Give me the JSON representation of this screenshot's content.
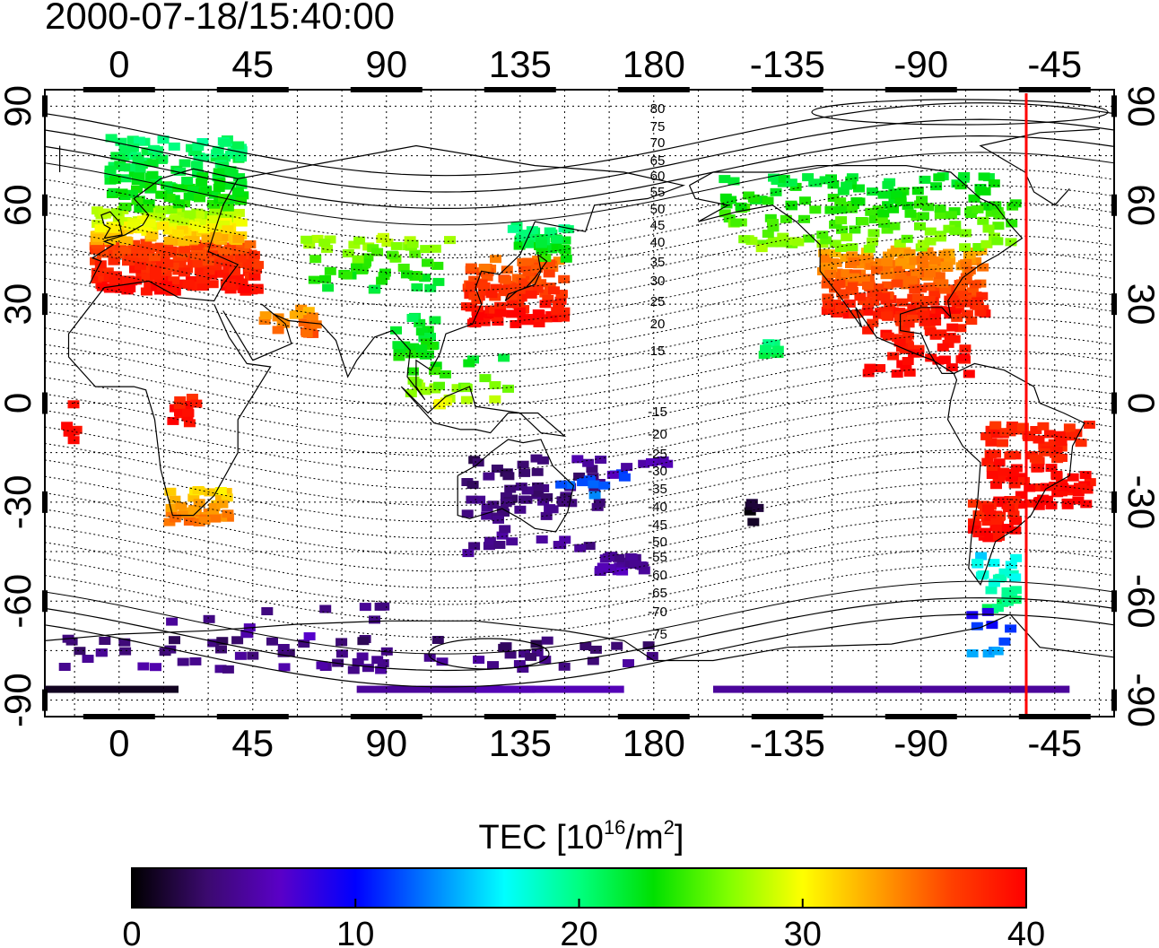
{
  "title": "2000-07-18/15:40:00",
  "map": {
    "lon_ticks_top": [
      "0",
      "45",
      "90",
      "135",
      "180",
      "-135",
      "-90",
      "-45"
    ],
    "lon_ticks_bottom": [
      "0",
      "45",
      "90",
      "135",
      "180",
      "-135",
      "-90",
      "-45"
    ],
    "lat_ticks_left": [
      "90",
      "60",
      "30",
      "0",
      "-30",
      "-60",
      "-90"
    ],
    "lat_ticks_right": [
      "90",
      "60",
      "30",
      "0",
      "-30",
      "-60",
      "-90"
    ],
    "contour_labels_north": [
      "80",
      "75",
      "70",
      "65",
      "60",
      "55",
      "50",
      "45",
      "40",
      "35",
      "30",
      "25",
      "20",
      "15"
    ],
    "contour_labels_south": [
      "-15",
      "-20",
      "-25",
      "-30",
      "-35",
      "-40",
      "-45",
      "-50",
      "-55",
      "-60",
      "-65",
      "-70",
      "-75"
    ],
    "terminator_color": "#ff0000"
  },
  "colorbar": {
    "label_prefix": "TEC  [10",
    "label_exp1": "16",
    "label_mid": "/m",
    "label_exp2": "2",
    "label_suffix": "]",
    "ticks": [
      "0",
      "10",
      "20",
      "30",
      "40"
    ],
    "min": 0,
    "max": 40,
    "colors": [
      "#000000",
      "#3b0a6e",
      "#5a00c8",
      "#0000ff",
      "#0080ff",
      "#00ffff",
      "#00ff80",
      "#00e000",
      "#80ff00",
      "#ffff00",
      "#ffa000",
      "#ff4000",
      "#ff0000"
    ]
  },
  "chart_data": {
    "type": "heatmap",
    "title": "2000-07-18/15:40:00",
    "colorbar_label": "TEC [10^16/m^2]",
    "value_range": [
      0,
      40
    ],
    "regions": [
      {
        "lon": [
          -10,
          40
        ],
        "lat": [
          35,
          50
        ],
        "value": 38
      },
      {
        "lon": [
          -10,
          40
        ],
        "lat": [
          50,
          60
        ],
        "value": 30
      },
      {
        "lon": [
          0,
          40
        ],
        "lat": [
          60,
          80
        ],
        "value": 23
      },
      {
        "lon": [
          120,
          145
        ],
        "lat": [
          25,
          45
        ],
        "value": 37
      },
      {
        "lon": [
          -125,
          -70
        ],
        "lat": [
          30,
          48
        ],
        "value": 36
      },
      {
        "lon": [
          -160,
          -60
        ],
        "lat": [
          50,
          70
        ],
        "value": 24
      },
      {
        "lon": [
          -70,
          -40
        ],
        "lat": [
          -35,
          -5
        ],
        "value": 39
      },
      {
        "lon": [
          115,
          155
        ],
        "lat": [
          -45,
          -15
        ],
        "value": 5
      },
      {
        "lon": [
          -20,
          180
        ],
        "lat": [
          -90,
          -70
        ],
        "value": 4
      },
      {
        "lon": [
          15,
          35
        ],
        "lat": [
          -35,
          -25
        ],
        "value": 33
      }
    ]
  }
}
